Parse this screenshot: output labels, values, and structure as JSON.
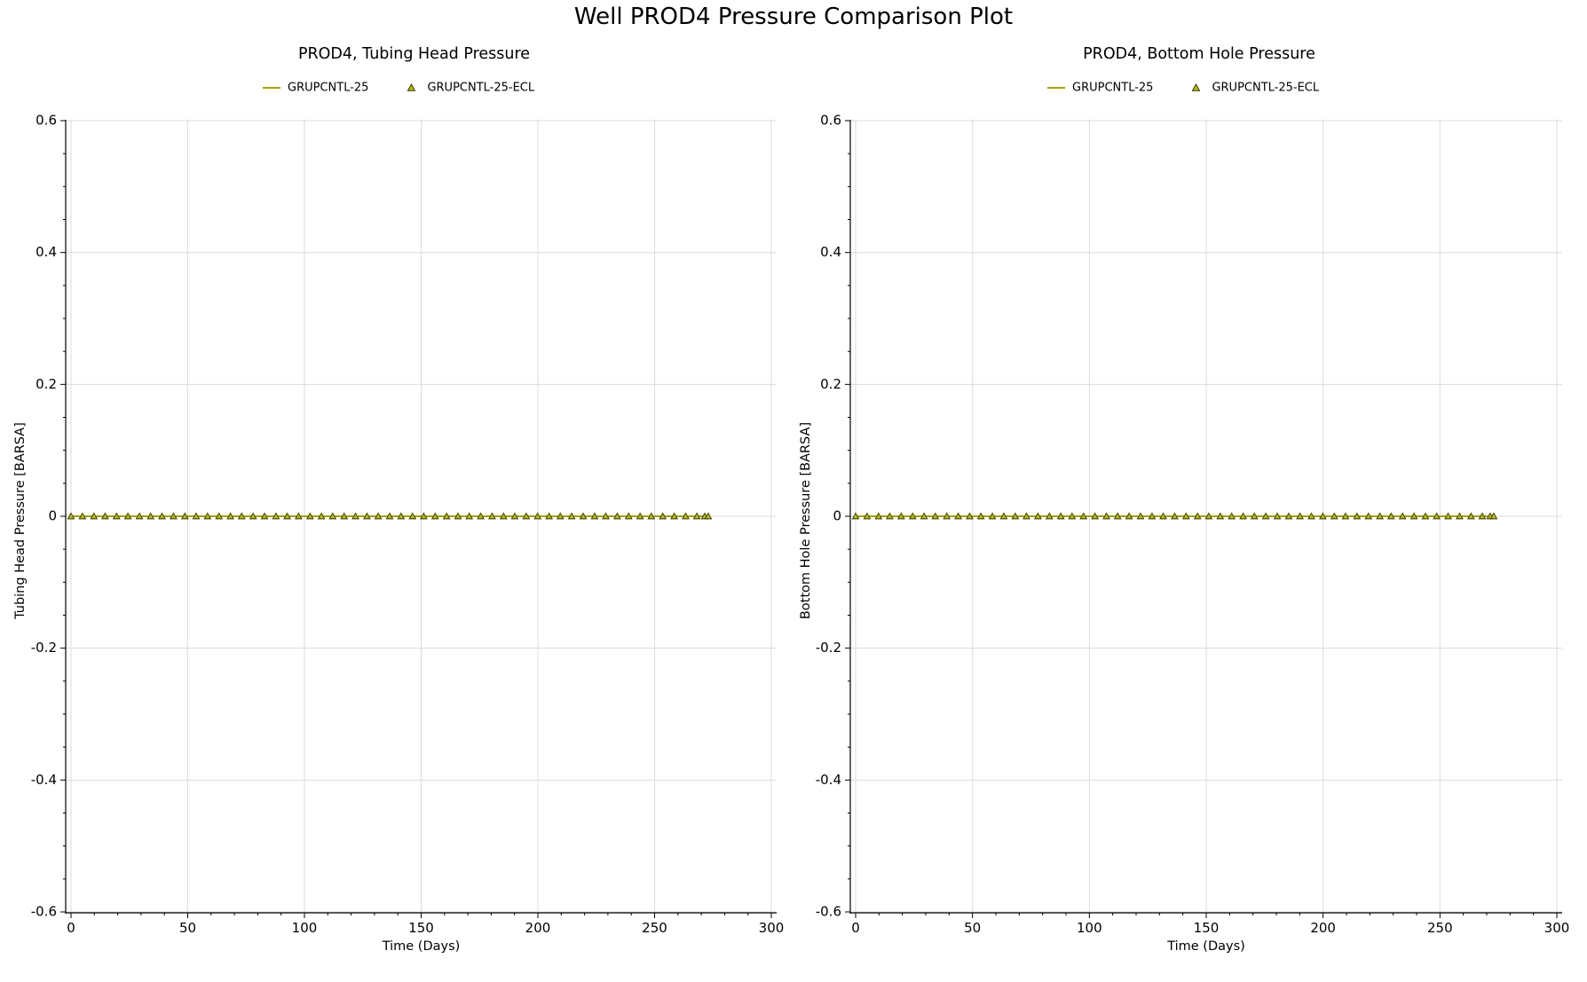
{
  "title": "Well PROD4 Pressure Comparison Plot",
  "colors": {
    "line": "#a3a300",
    "marker_fill": "#b9b91e",
    "marker_stroke": "#3a3a00",
    "grid": "#dcdcdc",
    "axis": "#000000"
  },
  "chart_data": [
    {
      "type": "line",
      "title": "PROD4, Tubing Head Pressure",
      "xlabel": "Time (Days)",
      "ylabel": "Tubing Head Pressure [BARSA]",
      "xlim": [
        0,
        300
      ],
      "ylim": [
        -0.6,
        0.6
      ],
      "xticks": [
        0,
        50,
        100,
        150,
        200,
        250,
        300
      ],
      "yticks": [
        0.6,
        0.4,
        0.2,
        0,
        -0.2,
        -0.4,
        -0.6
      ],
      "ytick_labels": [
        "0.6",
        "0.4",
        "0.2",
        "0",
        "-0.2",
        "-0.4",
        "-0.6"
      ],
      "grid": true,
      "legend": "top-center",
      "series": [
        {
          "name": "GRUPCNTL-25",
          "style": "line",
          "x": [
            0,
            273
          ],
          "y": [
            0,
            0
          ]
        },
        {
          "name": "GRUPCNTL-25-ECL",
          "style": "triangle-markers",
          "x": [
            0,
            4.9,
            9.8,
            14.6,
            19.5,
            24.4,
            29.3,
            34.1,
            39,
            43.9,
            48.8,
            53.6,
            58.5,
            63.4,
            68.3,
            73.1,
            78,
            82.9,
            87.8,
            92.6,
            97.5,
            102.4,
            107.3,
            112.1,
            117,
            121.9,
            126.8,
            131.6,
            136.5,
            141.4,
            146.3,
            151.1,
            156,
            160.9,
            165.8,
            170.6,
            175.5,
            180.4,
            185.3,
            190.1,
            195,
            199.9,
            204.8,
            209.6,
            214.5,
            219.4,
            224.3,
            229.1,
            234,
            238.9,
            243.8,
            248.6,
            253.5,
            258.4,
            263.3,
            268.1,
            271.5,
            273
          ],
          "y": [
            0,
            0,
            0,
            0,
            0,
            0,
            0,
            0,
            0,
            0,
            0,
            0,
            0,
            0,
            0,
            0,
            0,
            0,
            0,
            0,
            0,
            0,
            0,
            0,
            0,
            0,
            0,
            0,
            0,
            0,
            0,
            0,
            0,
            0,
            0,
            0,
            0,
            0,
            0,
            0,
            0,
            0,
            0,
            0,
            0,
            0,
            0,
            0,
            0,
            0,
            0,
            0,
            0,
            0,
            0,
            0,
            0,
            0
          ]
        }
      ]
    },
    {
      "type": "line",
      "title": "PROD4, Bottom Hole Pressure",
      "xlabel": "Time (Days)",
      "ylabel": "Bottom Hole Pressure [BARSA]",
      "xlim": [
        0,
        300
      ],
      "ylim": [
        -0.6,
        0.6
      ],
      "xticks": [
        0,
        50,
        100,
        150,
        200,
        250,
        300
      ],
      "yticks": [
        0.6,
        0.4,
        0.2,
        0,
        -0.2,
        -0.4,
        -0.6
      ],
      "ytick_labels": [
        "0.6",
        "0.4",
        "0.2",
        "0",
        "-0.2",
        "-0.4",
        "-0.6"
      ],
      "grid": true,
      "legend": "top-center",
      "series": [
        {
          "name": "GRUPCNTL-25",
          "style": "line",
          "x": [
            0,
            273
          ],
          "y": [
            0,
            0
          ]
        },
        {
          "name": "GRUPCNTL-25-ECL",
          "style": "triangle-markers",
          "x": [
            0,
            4.9,
            9.8,
            14.6,
            19.5,
            24.4,
            29.3,
            34.1,
            39,
            43.9,
            48.8,
            53.6,
            58.5,
            63.4,
            68.3,
            73.1,
            78,
            82.9,
            87.8,
            92.6,
            97.5,
            102.4,
            107.3,
            112.1,
            117,
            121.9,
            126.8,
            131.6,
            136.5,
            141.4,
            146.3,
            151.1,
            156,
            160.9,
            165.8,
            170.6,
            175.5,
            180.4,
            185.3,
            190.1,
            195,
            199.9,
            204.8,
            209.6,
            214.5,
            219.4,
            224.3,
            229.1,
            234,
            238.9,
            243.8,
            248.6,
            253.5,
            258.4,
            263.3,
            268.1,
            271.5,
            273
          ],
          "y": [
            0,
            0,
            0,
            0,
            0,
            0,
            0,
            0,
            0,
            0,
            0,
            0,
            0,
            0,
            0,
            0,
            0,
            0,
            0,
            0,
            0,
            0,
            0,
            0,
            0,
            0,
            0,
            0,
            0,
            0,
            0,
            0,
            0,
            0,
            0,
            0,
            0,
            0,
            0,
            0,
            0,
            0,
            0,
            0,
            0,
            0,
            0,
            0,
            0,
            0,
            0,
            0,
            0,
            0,
            0,
            0,
            0,
            0
          ]
        }
      ]
    }
  ]
}
